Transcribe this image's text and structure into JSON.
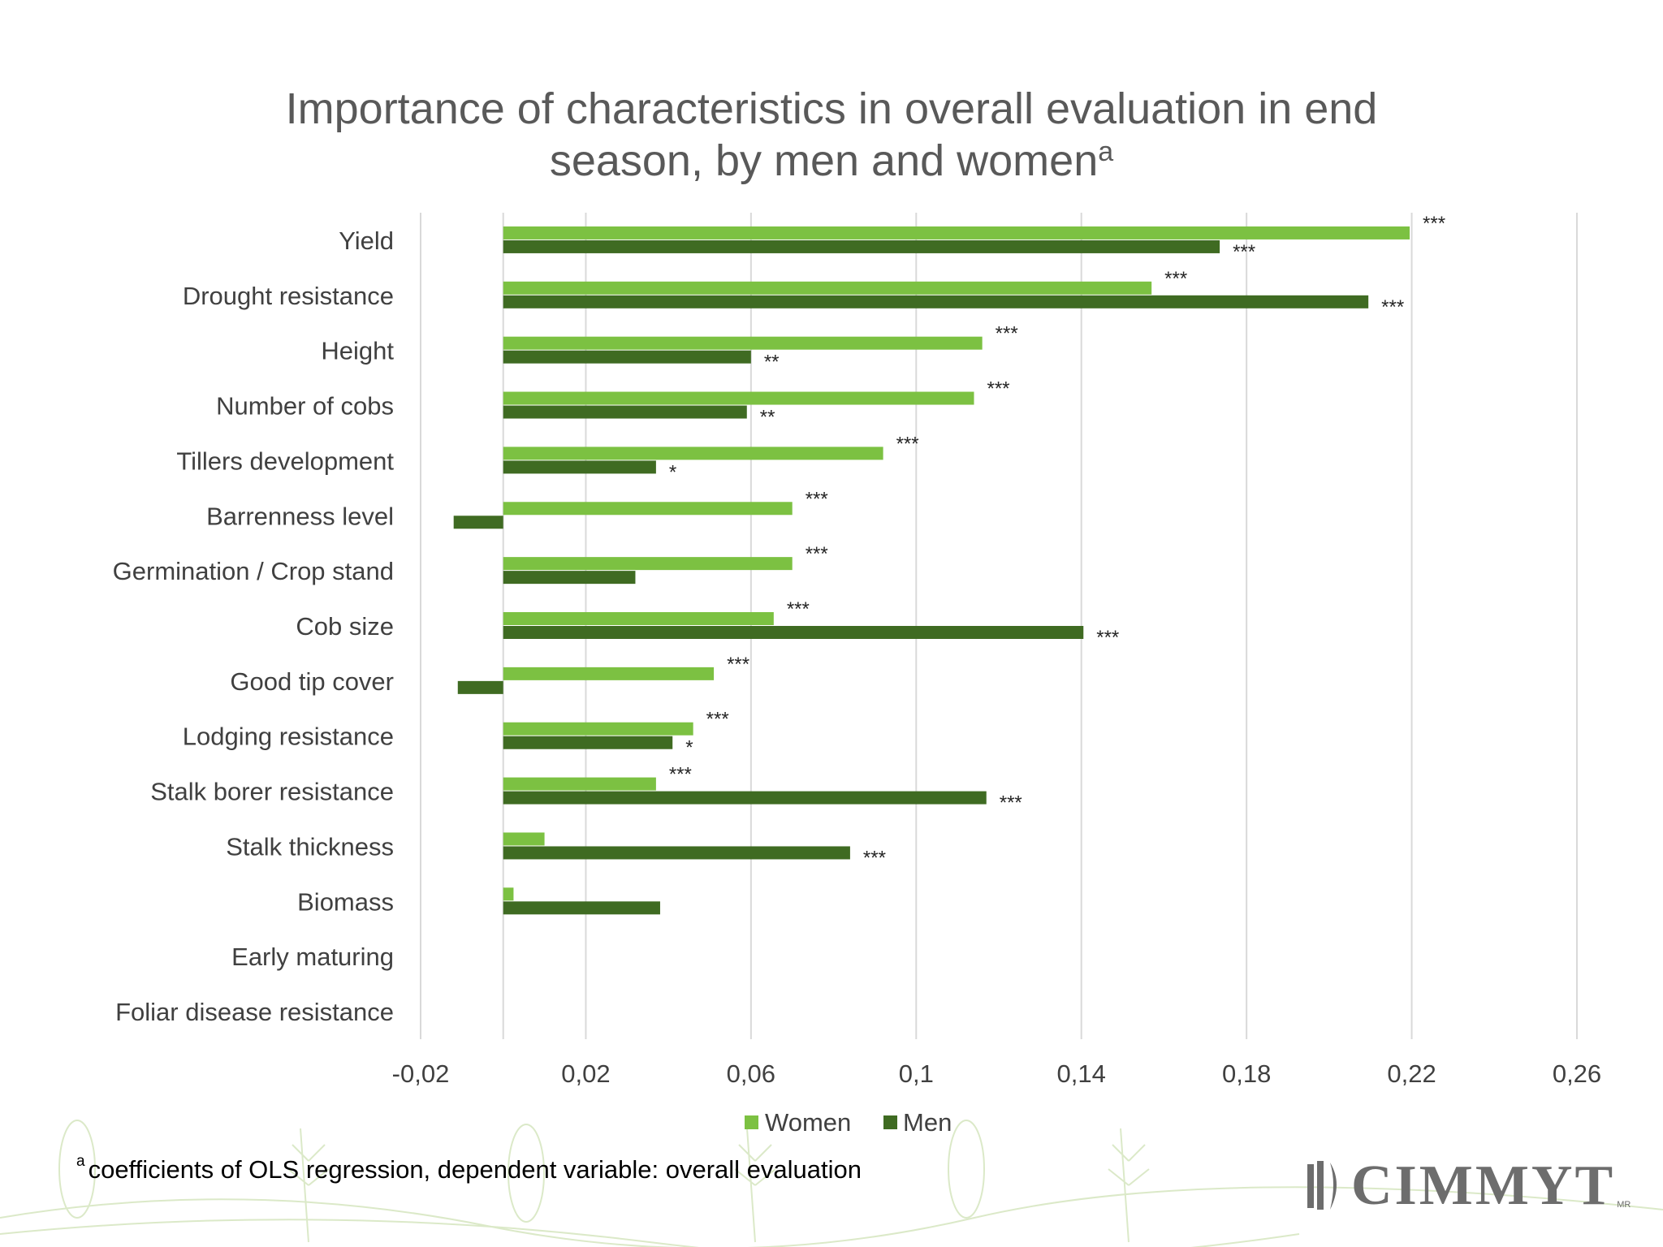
{
  "chart_data": {
    "type": "bar",
    "orientation": "horizontal",
    "title": "Importance of characteristics in overall evaluation in end season, by men and women",
    "title_lines": [
      "Importance of characteristics in overall evaluation in end",
      "season, by men and women"
    ],
    "title_superscript": "a",
    "categories": [
      "Yield",
      "Drought resistance",
      "Height",
      "Number of cobs",
      "Tillers development",
      "Barrenness level",
      "Germination / Crop stand",
      "Cob size",
      "Good tip cover",
      "Lodging resistance",
      "Stalk borer resistance",
      "Stalk thickness",
      "Biomass",
      "Early maturing",
      "Foliar disease resistance"
    ],
    "series": [
      {
        "name": "Women",
        "color": "#7cc142",
        "values": [
          0.2195,
          0.157,
          0.116,
          0.114,
          0.092,
          0.07,
          0.07,
          0.0655,
          0.051,
          0.046,
          0.037,
          0.01,
          0.0025,
          null,
          null
        ],
        "significance": [
          "***",
          "***",
          "***",
          "***",
          "***",
          "***",
          "***",
          "***",
          "***",
          "***",
          "***",
          "",
          "",
          "",
          ""
        ]
      },
      {
        "name": "Men",
        "color": "#3f6b22",
        "values": [
          0.1735,
          0.2095,
          0.06,
          0.059,
          0.037,
          -0.012,
          0.032,
          0.1405,
          -0.011,
          0.041,
          0.117,
          0.084,
          0.038,
          null,
          null
        ],
        "significance": [
          "***",
          "***",
          "**",
          "**",
          "*",
          "",
          "",
          "***",
          "",
          "*",
          "***",
          "***",
          "",
          "",
          ""
        ]
      }
    ],
    "xlim": [
      -0.02,
      0.26
    ],
    "xticks": [
      -0.02,
      0.02,
      0.06,
      0.1,
      0.14,
      0.18,
      0.22,
      0.26
    ],
    "xtick_labels": [
      "-0,02",
      "0,02",
      "0,06",
      "0,1",
      "0,14",
      "0,18",
      "0,22",
      "0,26"
    ],
    "grid": true,
    "legend": [
      "Women",
      "Men"
    ],
    "legend_position": "bottom"
  },
  "footnote": {
    "marker": "a",
    "text": "coefficients of OLS regression, dependent variable: overall evaluation"
  },
  "logo": {
    "text": "CIMMYT",
    "mark": "MR"
  }
}
